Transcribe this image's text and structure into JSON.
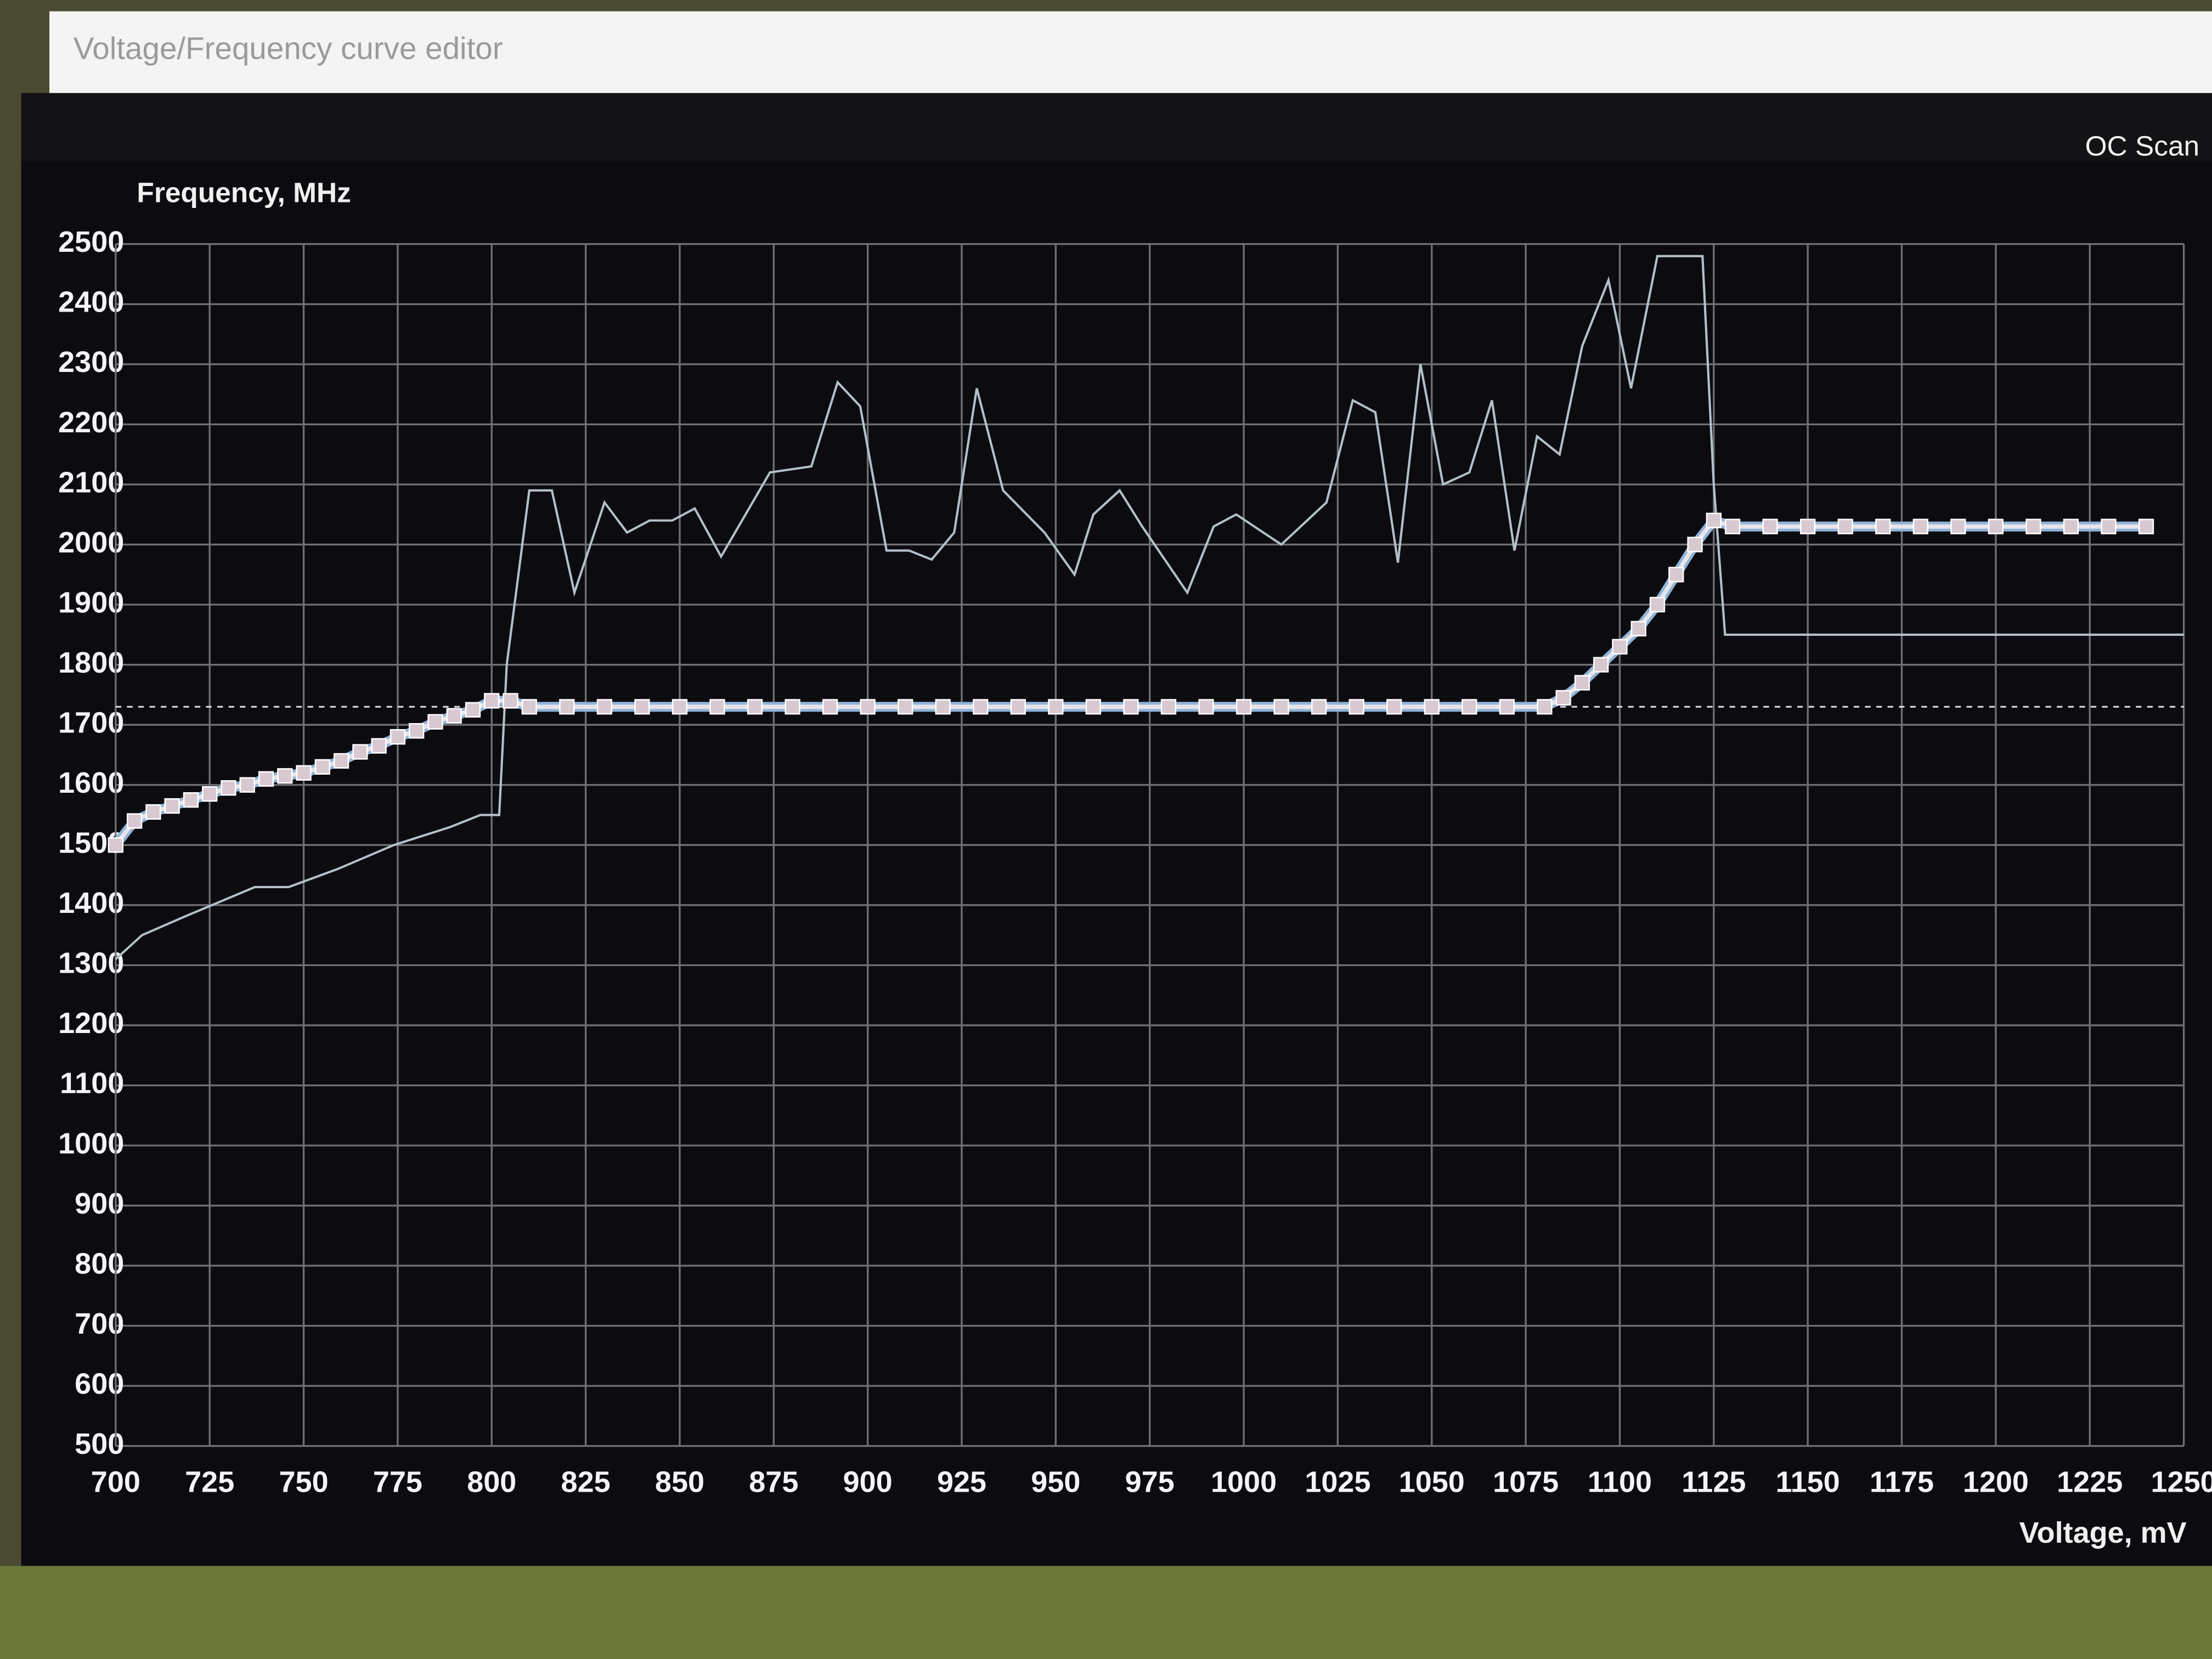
{
  "window": {
    "title": "Voltage/Frequency curve editor",
    "button": "OC Scan"
  },
  "chart_data": {
    "type": "line",
    "ylabel": "Frequency, MHz",
    "xlabel": "Voltage, mV",
    "xlim": [
      700,
      1250
    ],
    "ylim": [
      500,
      2500
    ],
    "xticks": [
      700,
      725,
      750,
      775,
      800,
      825,
      850,
      875,
      900,
      925,
      950,
      975,
      1000,
      1025,
      1050,
      1075,
      1100,
      1125,
      1150,
      1175,
      1200,
      1225,
      1250
    ],
    "yticks": [
      500,
      600,
      700,
      800,
      900,
      1000,
      1100,
      1200,
      1300,
      1400,
      1500,
      1600,
      1700,
      1800,
      1900,
      2000,
      2100,
      2200,
      2300,
      2400,
      2500
    ],
    "grid": true,
    "reference_line": 1730,
    "series": [
      {
        "color": "#b4c0c8",
        "x": [
          700,
          707,
          718,
          737,
          746,
          759,
          774,
          789,
          797,
          802,
          804,
          810,
          816,
          822,
          830,
          836,
          842,
          848,
          854,
          861,
          874,
          885,
          892,
          898,
          905,
          911,
          917,
          923,
          929,
          936,
          947,
          955,
          960,
          967,
          973,
          985,
          992,
          998,
          1010,
          1022,
          1029,
          1035,
          1041,
          1047,
          1053,
          1060,
          1066,
          1072,
          1078,
          1084,
          1090,
          1097,
          1103,
          1110,
          1122,
          1125,
          1128,
          1250
        ],
        "values": [
          1310,
          1350,
          1380,
          1430,
          1430,
          1460,
          1500,
          1530,
          1550,
          1550,
          1800,
          2090,
          2090,
          1920,
          2070,
          2020,
          2040,
          2040,
          2060,
          1980,
          2120,
          2130,
          2270,
          2230,
          1990,
          1990,
          1975,
          2020,
          2260,
          2090,
          2020,
          1950,
          2050,
          2090,
          2030,
          1920,
          2030,
          2050,
          2000,
          2070,
          2240,
          2220,
          1970,
          2300,
          2100,
          2120,
          2240,
          1990,
          2180,
          2150,
          2330,
          2440,
          2260,
          2480,
          2480,
          2100,
          1850,
          1850
        ]
      },
      {
        "color": "#e8e4ea",
        "marker": "square",
        "x": [
          700,
          705,
          710,
          715,
          720,
          725,
          730,
          735,
          740,
          745,
          750,
          755,
          760,
          765,
          770,
          775,
          780,
          785,
          790,
          795,
          800,
          805,
          810,
          820,
          830,
          840,
          850,
          860,
          870,
          880,
          890,
          900,
          910,
          920,
          930,
          940,
          950,
          960,
          970,
          980,
          990,
          1000,
          1010,
          1020,
          1030,
          1040,
          1050,
          1060,
          1070,
          1080,
          1085,
          1090,
          1095,
          1100,
          1105,
          1110,
          1115,
          1120,
          1125,
          1130,
          1140,
          1150,
          1160,
          1170,
          1180,
          1190,
          1200,
          1210,
          1220,
          1230,
          1240
        ],
        "values": [
          1500,
          1540,
          1555,
          1565,
          1575,
          1585,
          1595,
          1600,
          1610,
          1615,
          1620,
          1630,
          1640,
          1655,
          1665,
          1680,
          1690,
          1705,
          1715,
          1725,
          1740,
          1740,
          1730,
          1730,
          1730,
          1730,
          1730,
          1730,
          1730,
          1730,
          1730,
          1730,
          1730,
          1730,
          1730,
          1730,
          1730,
          1730,
          1730,
          1730,
          1730,
          1730,
          1730,
          1730,
          1730,
          1730,
          1730,
          1730,
          1730,
          1730,
          1745,
          1770,
          1800,
          1830,
          1860,
          1900,
          1950,
          2000,
          2040,
          2030,
          2030,
          2030,
          2030,
          2030,
          2030,
          2030,
          2030,
          2030,
          2030,
          2030,
          2030
        ]
      }
    ]
  }
}
